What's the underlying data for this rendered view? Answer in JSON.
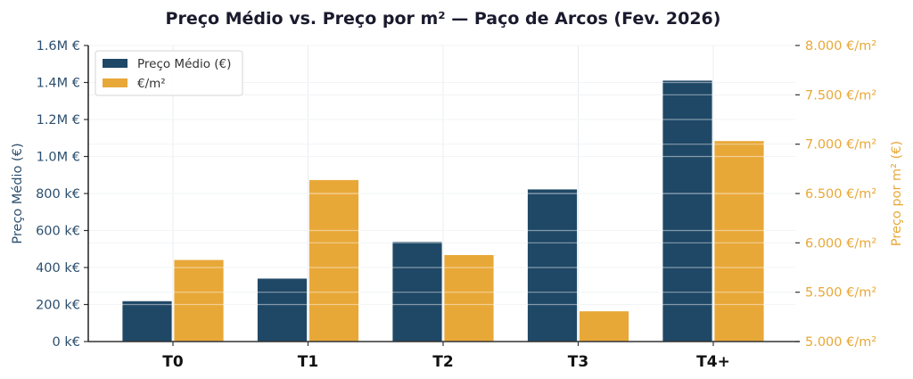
{
  "chart_data": {
    "type": "bar",
    "title": "Preço Médio vs. Preço por m² — Paço de Arcos (Fev. 2026)",
    "categories": [
      "T0",
      "T1",
      "T2",
      "T3",
      "T4+"
    ],
    "series": [
      {
        "name": "Preço Médio (€)",
        "axis": "left",
        "color": "#1f4866",
        "values": [
          220000,
          342000,
          540000,
          824000,
          1412000
        ]
      },
      {
        "name": "€/m²",
        "axis": "right",
        "color": "#e8a838",
        "values": [
          5830,
          6640,
          5880,
          5310,
          7035
        ]
      }
    ],
    "xlabel": "",
    "ylabel": "Preço Médio (€)",
    "ylabel_right": "Preço por m² (€)",
    "ylim": [
      0,
      1600000
    ],
    "ylim_right": [
      5000,
      8000
    ],
    "yticks": [
      "0 k€",
      "200 k€",
      "400 k€",
      "600 k€",
      "800 k€",
      "1.0M €",
      "1.2M €",
      "1.4M €",
      "1.6M €"
    ],
    "yticks_right": [
      "5.000 €/m²",
      "5.500 €/m²",
      "6.000 €/m²",
      "6.500 €/m²",
      "7.000 €/m²",
      "7.500 €/m²",
      "8.000 €/m²"
    ],
    "grid": true,
    "legend_position": "upper left"
  },
  "colors": {
    "left_axis_text": "#2c4f6e",
    "right_axis_text": "#e8a838",
    "grid": "#e8ecf0",
    "spine": "#333333"
  }
}
